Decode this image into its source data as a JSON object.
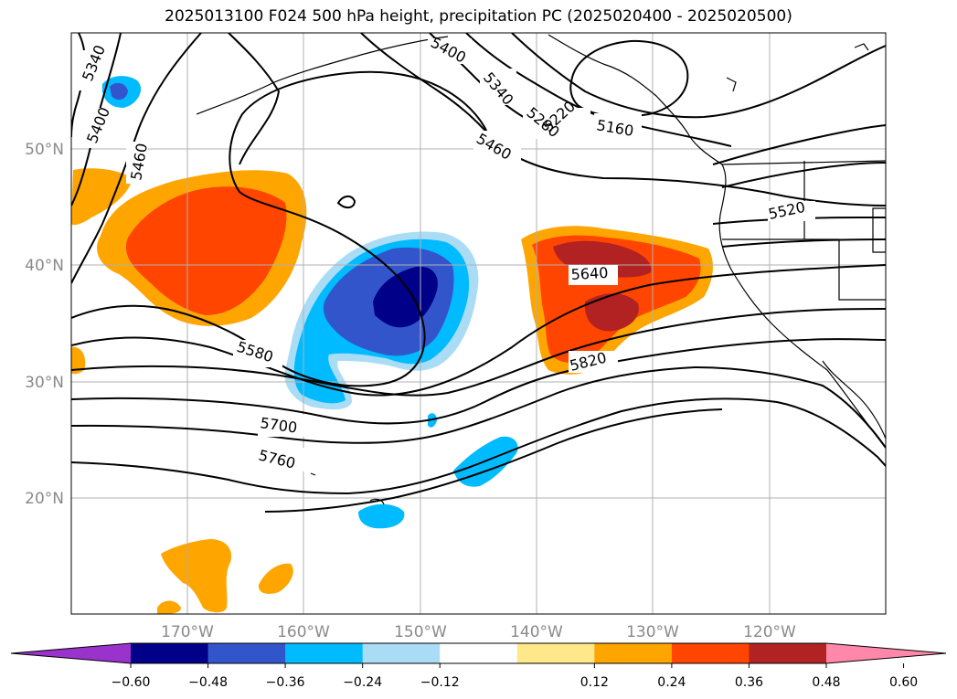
{
  "title": "2025013100 F024 500 hPa height, precipitation PC (2025020400 - 2025020500)",
  "latitude_labels": [
    "50°N",
    "40°N",
    "30°N",
    "20°N"
  ],
  "longitude_labels": [
    "170°W",
    "160°W",
    "150°W",
    "140°W",
    "130°W",
    "120°W"
  ],
  "height_contour_labels": [
    "5340",
    "5400",
    "5460",
    "5400",
    "5340",
    "5280",
    "5220",
    "5160",
    "5460",
    "5520",
    "5580",
    "5640",
    "5700",
    "5760",
    "5820"
  ],
  "colorbar": {
    "ticks": [
      "−0.60",
      "−0.48",
      "−0.36",
      "−0.24",
      "−0.12",
      "0.12",
      "0.24",
      "0.36",
      "0.48",
      "0.60"
    ],
    "colors": [
      "#9933cc",
      "#000088",
      "#3355cc",
      "#00bbff",
      "#aaddf5",
      "#ffffff",
      "#ffe88a",
      "#ffa500",
      "#ff4500",
      "#b22222",
      "#ff88aa"
    ]
  },
  "map_colors": {
    "neg_light": "#aaddf5",
    "neg_mid": "#00bbff",
    "neg_strong": "#3355cc",
    "neg_max": "#000088",
    "pos_light": "#ffe88a",
    "pos_mid": "#ffa500",
    "pos_strong": "#ff4500",
    "pos_max": "#b22222"
  }
}
